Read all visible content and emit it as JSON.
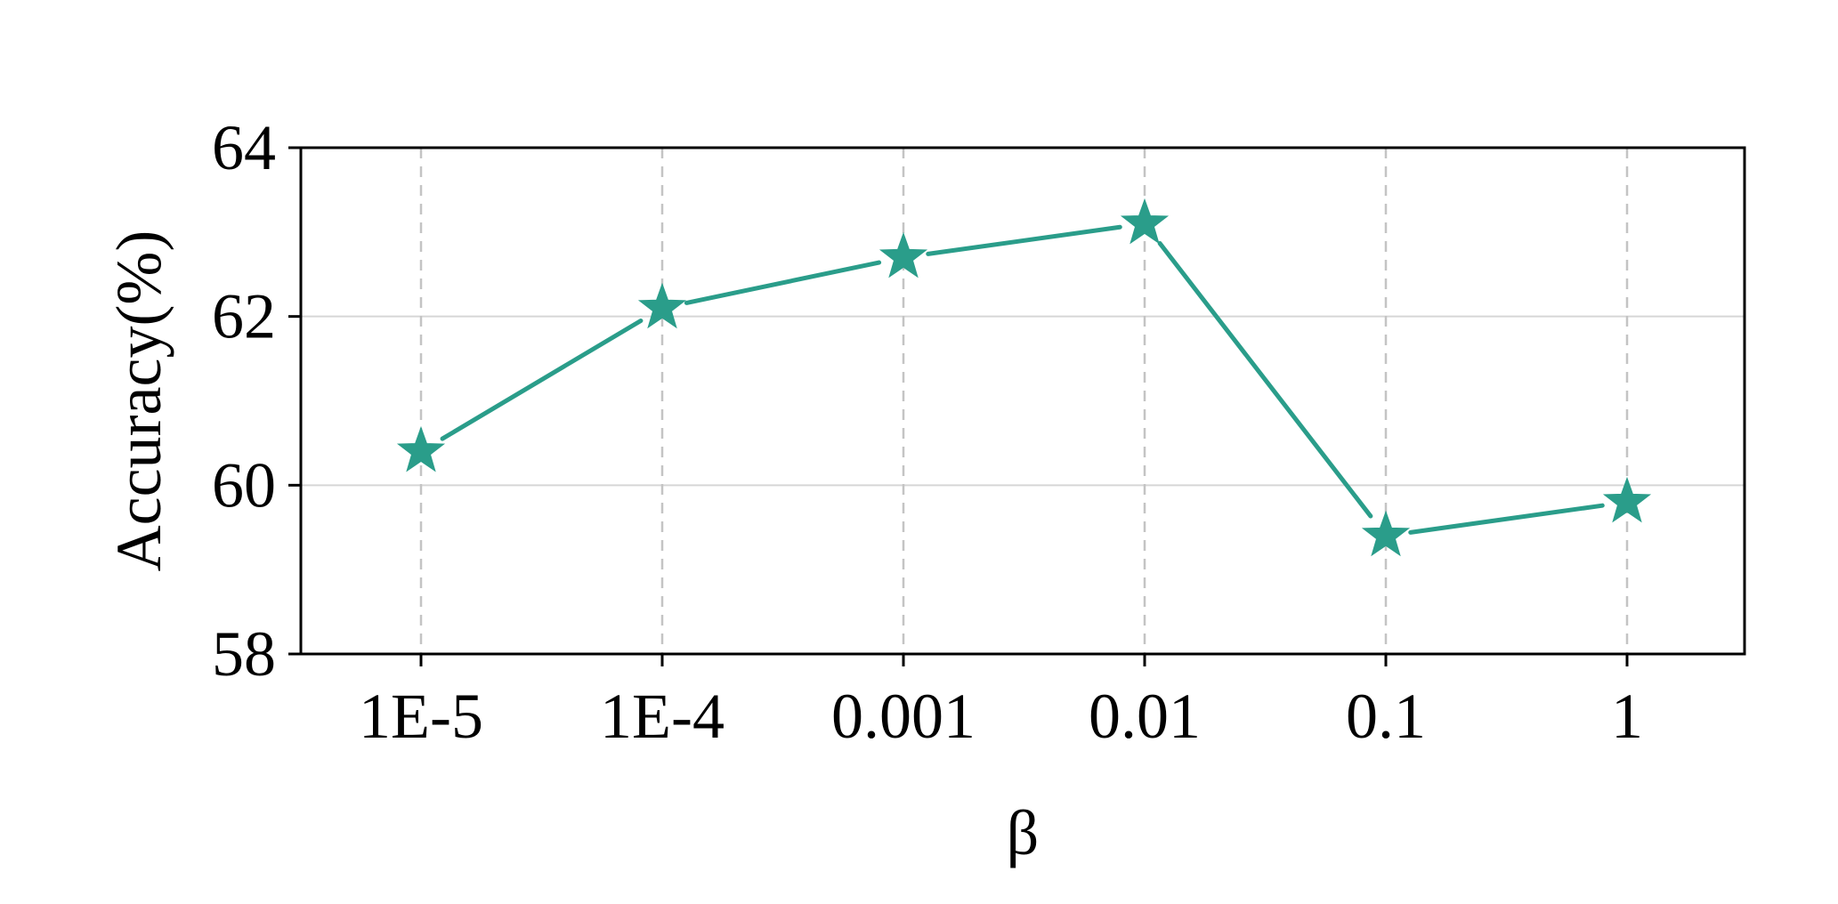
{
  "chart_data": {
    "type": "line",
    "title": "",
    "xlabel": "β",
    "ylabel": "Accuracy(%)",
    "categories": [
      "1E-5",
      "1E-4",
      "0.001",
      "0.01",
      "0.1",
      "1"
    ],
    "series": [
      {
        "values": [
          60.4,
          62.1,
          62.7,
          63.1,
          59.4,
          59.8
        ],
        "color": "#2a9d8a",
        "marker": "star"
      }
    ],
    "ylim": [
      58,
      64
    ],
    "yticks": [
      58,
      60,
      62,
      64
    ],
    "grid": {
      "x": "dashed",
      "y": "solid"
    }
  }
}
